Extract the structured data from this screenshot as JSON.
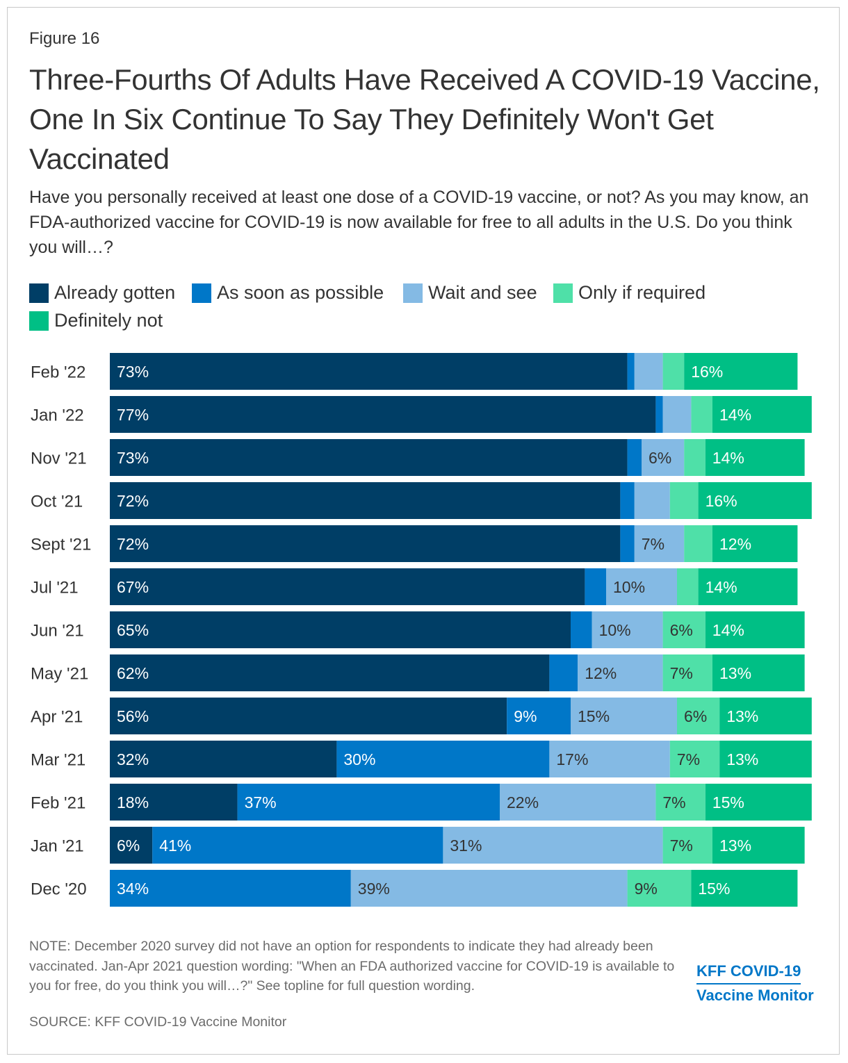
{
  "figure_label": "Figure 16",
  "title": "Three-Fourths Of Adults Have Received A COVID-19 Vaccine, One In Six Continue To Say They Definitely Won't Get Vaccinated",
  "subtitle": "Have you personally received at least one dose of a COVID-19 vaccine, or not? As you may know, an FDA-authorized vaccine for COVID-19 is now available for free to all adults in the U.S. Do you think you will…?",
  "note": "NOTE: December 2020 survey did not have an option for respondents to indicate they had already been vaccinated. Jan-Apr 2021 question wording: \"When an FDA authorized vaccine for COVID-19 is available to you for free, do you think you will…?\" See topline for full question wording.",
  "source": "SOURCE: KFF COVID-19 Vaccine Monitor",
  "logo": {
    "line1": "KFF COVID-19",
    "line2": "Vaccine Monitor"
  },
  "colors": {
    "already": "#003e66",
    "asap": "#0077c8",
    "wait": "#84bae4",
    "required": "#4fe0a8",
    "never": "#00bf85",
    "dark_text": "#333333",
    "light_text": "#ffffff"
  },
  "chart_data": {
    "type": "bar",
    "orientation": "horizontal",
    "stacked": true,
    "title": "Three-Fourths Of Adults Have Received A COVID-19 Vaccine, One In Six Continue To Say They Definitely Won't Get Vaccinated",
    "xlabel": "",
    "ylabel": "",
    "xlim": [
      0,
      100
    ],
    "grid": false,
    "legend_position": "top",
    "categories": [
      "Feb '22",
      "Jan '22",
      "Nov '21",
      "Oct '21",
      "Sept '21",
      "Jul '21",
      "Jun '21",
      "May '21",
      "Apr '21",
      "Mar '21",
      "Feb '21",
      "Jan '21",
      "Dec '20"
    ],
    "series": [
      {
        "name": "Already gotten",
        "color_key": "already",
        "label_color": "light",
        "values": [
          73,
          77,
          73,
          72,
          72,
          67,
          65,
          62,
          56,
          32,
          18,
          6,
          null
        ],
        "labels": [
          "73%",
          "77%",
          "73%",
          "72%",
          "72%",
          "67%",
          "65%",
          "62%",
          "56%",
          "32%",
          "18%",
          "6%",
          ""
        ]
      },
      {
        "name": "As soon as possible",
        "color_key": "asap",
        "label_color": "light",
        "values": [
          1,
          1,
          2,
          2,
          2,
          3,
          3,
          4,
          9,
          30,
          37,
          41,
          34
        ],
        "labels": [
          "",
          "",
          "",
          "",
          "",
          "",
          "",
          "",
          "9%",
          "30%",
          "37%",
          "41%",
          "34%"
        ]
      },
      {
        "name": "Wait and see",
        "color_key": "wait",
        "label_color": "dark",
        "values": [
          4,
          4,
          6,
          5,
          7,
          10,
          10,
          12,
          15,
          17,
          22,
          31,
          39
        ],
        "labels": [
          "",
          "",
          "6%",
          "",
          "7%",
          "10%",
          "10%",
          "12%",
          "15%",
          "17%",
          "22%",
          "31%",
          "39%"
        ]
      },
      {
        "name": "Only if required",
        "color_key": "required",
        "label_color": "dark",
        "values": [
          3,
          3,
          3,
          4,
          4,
          3,
          6,
          7,
          6,
          7,
          7,
          7,
          9
        ],
        "labels": [
          "",
          "",
          "",
          "",
          "",
          "",
          "6%",
          "7%",
          "6%",
          "7%",
          "7%",
          "7%",
          "9%"
        ]
      },
      {
        "name": "Definitely not",
        "color_key": "never",
        "label_color": "light",
        "values": [
          16,
          14,
          14,
          16,
          12,
          14,
          14,
          13,
          13,
          13,
          15,
          13,
          15
        ],
        "labels": [
          "16%",
          "14%",
          "14%",
          "16%",
          "12%",
          "14%",
          "14%",
          "13%",
          "13%",
          "13%",
          "15%",
          "13%",
          "15%"
        ]
      }
    ]
  }
}
